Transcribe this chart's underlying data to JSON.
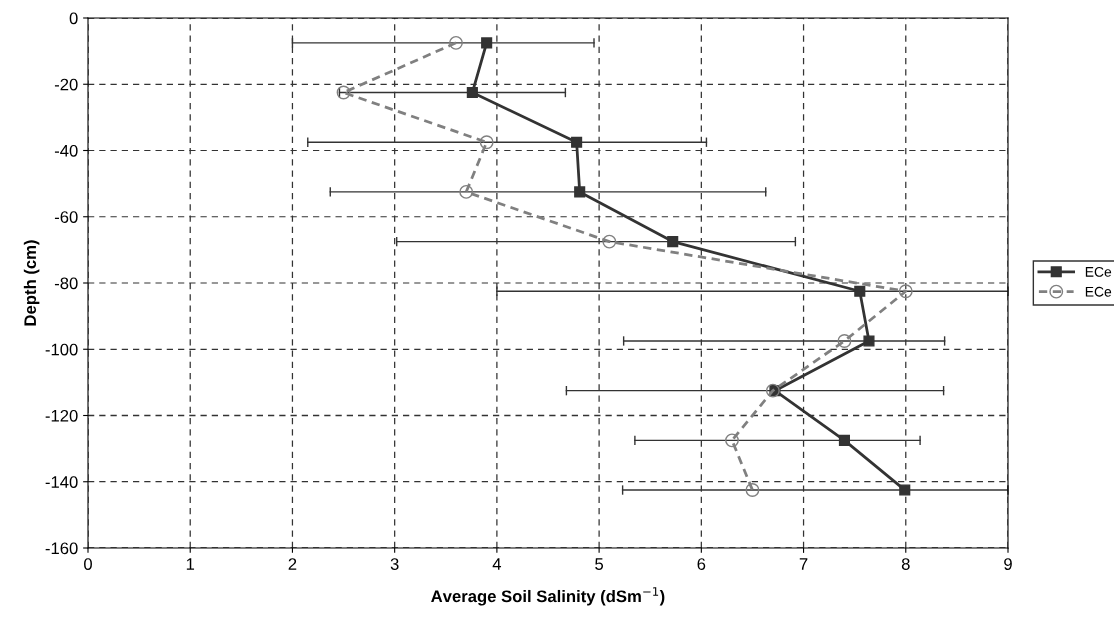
{
  "chart_data": {
    "type": "line",
    "xlabel": "Average Soil Salinity (dSm$^{−1}$)",
    "ylabel": "Depth (cm)",
    "xlim": [
      0,
      9
    ],
    "xticks": [
      0,
      1,
      2,
      3,
      4,
      5,
      6,
      7,
      8,
      9
    ],
    "ylim": [
      -160,
      0
    ],
    "yticks": [
      -160,
      -140,
      -120,
      -100,
      -80,
      -60,
      -40,
      -20,
      0
    ],
    "grid": true,
    "legend": "right",
    "series": [
      {
        "name": "ECe",
        "color": "#333333",
        "marker": "square",
        "line_style": "solid",
        "x": [
          3.9,
          3.76,
          4.78,
          4.81,
          5.72,
          7.55,
          7.64,
          6.72,
          7.4,
          7.99
        ],
        "values": [
          -7.5,
          -22.5,
          -37.5,
          -52.5,
          -67.5,
          -82.5,
          -97.5,
          -112.5,
          -127.5,
          -142.5
        ],
        "xerrors": [
          [
            2.0,
            4.95
          ],
          [
            2.46,
            4.67
          ],
          [
            2.15,
            6.05
          ],
          [
            2.37,
            6.63
          ],
          [
            3.02,
            6.92
          ],
          [
            4.0,
            9
          ],
          [
            5.24,
            8.38
          ],
          [
            4.68,
            8.37
          ],
          [
            5.35,
            8.14
          ],
          [
            5.23,
            9
          ]
        ]
      },
      {
        "name": "ECe",
        "color": "#808080",
        "marker": "circle",
        "line_style": "dashed",
        "x": [
          3.6,
          2.5,
          3.9,
          3.7,
          5.1,
          8.0,
          7.4,
          6.7,
          6.3,
          6.5
        ],
        "values": [
          -7.5,
          -22.5,
          -37.5,
          -52.5,
          -67.5,
          -82.5,
          -97.5,
          -112.5,
          -127.5,
          -142.5
        ]
      }
    ]
  }
}
